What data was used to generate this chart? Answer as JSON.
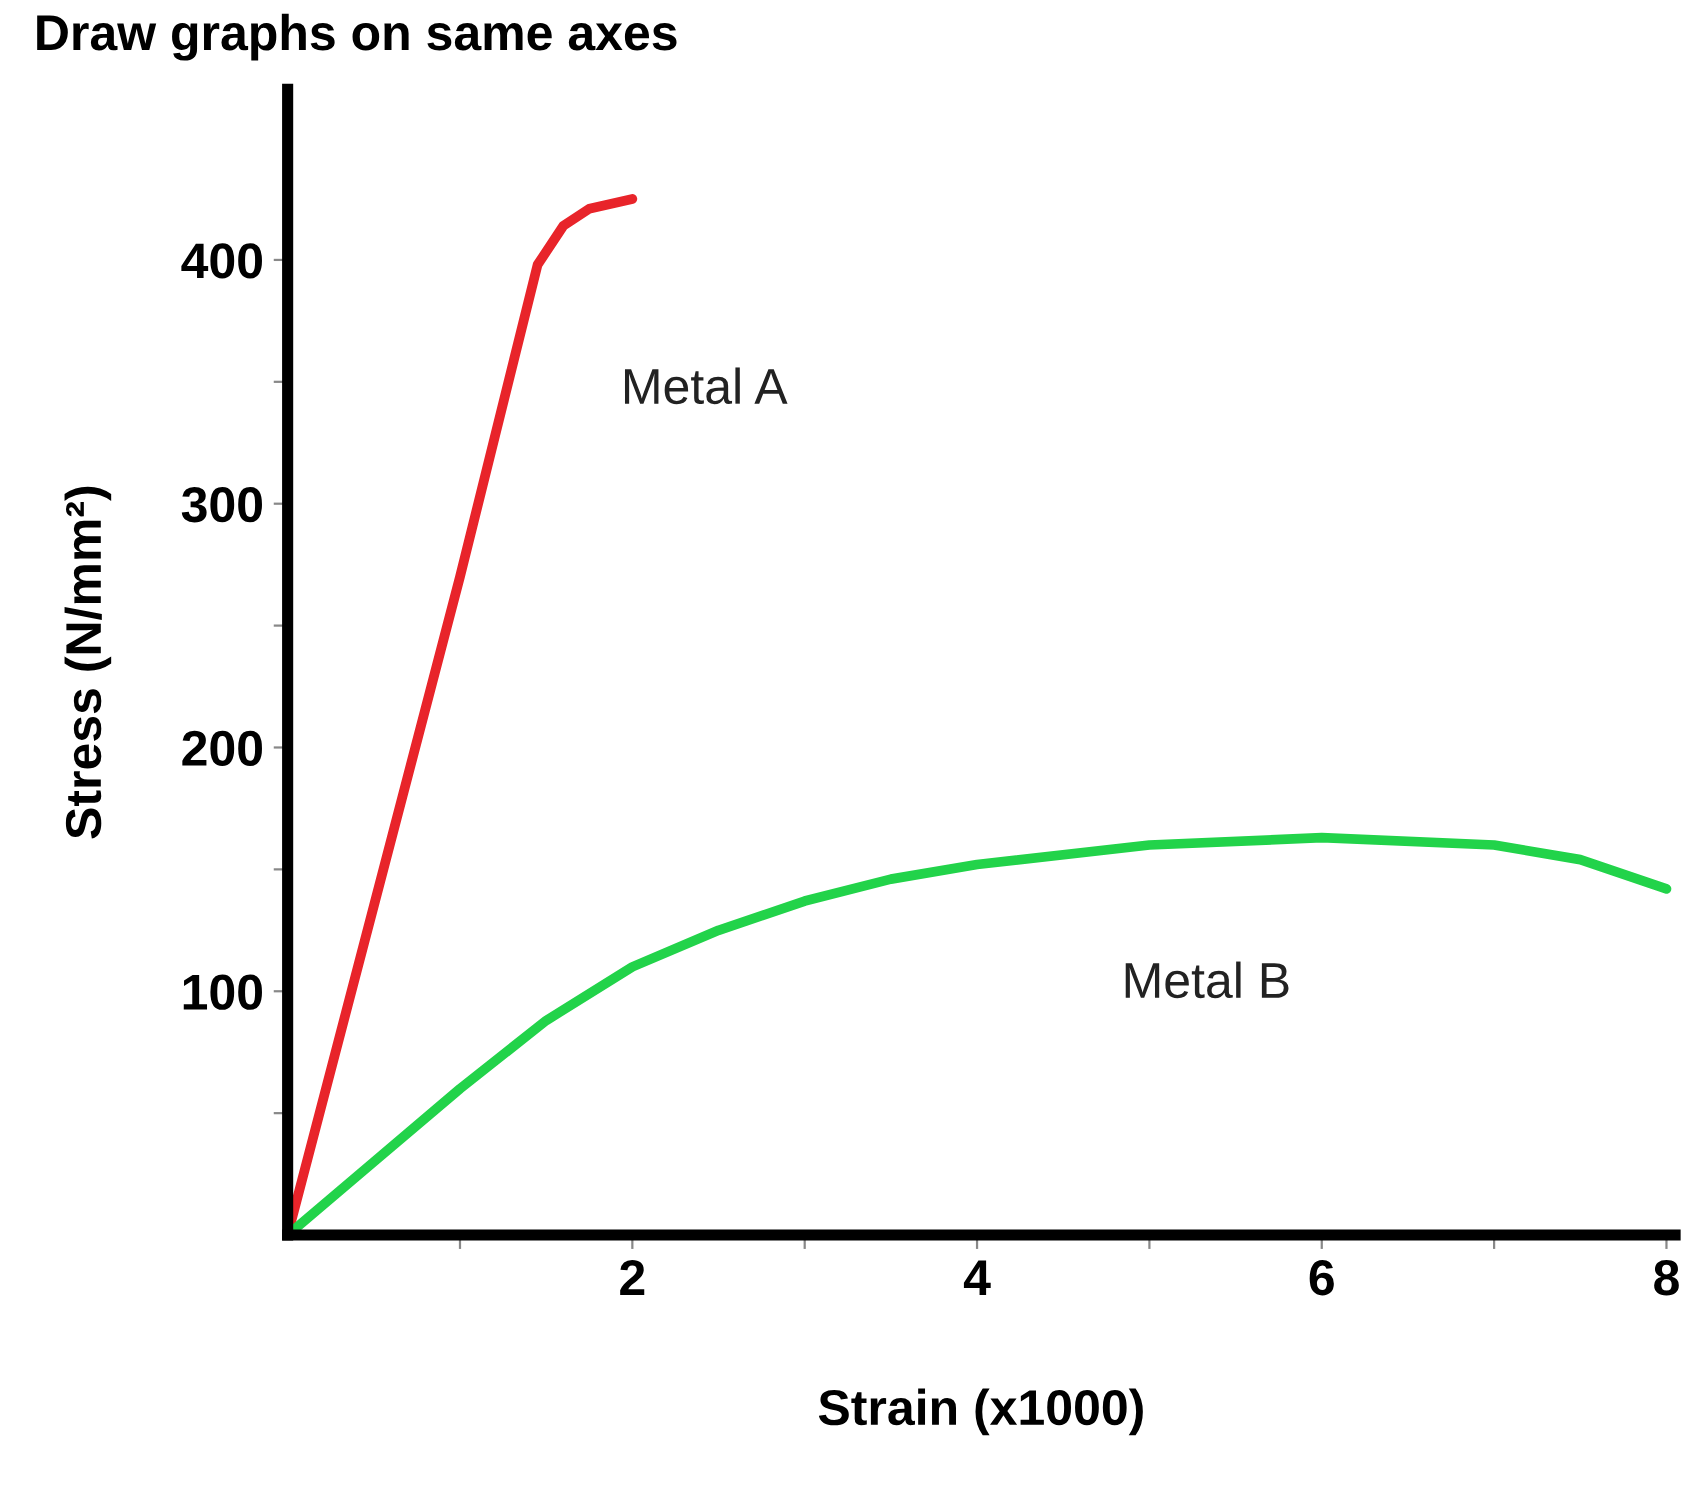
{
  "chart_data": {
    "type": "line",
    "title": "Draw graphs on same axes",
    "xlabel": "Strain (x1000)",
    "ylabel": "Stress (N/mm²)",
    "xlim": [
      0,
      8.05
    ],
    "ylim": [
      0,
      470
    ],
    "xticks": [
      {
        "value": 1,
        "label": null
      },
      2,
      {
        "value": 3,
        "label": null
      },
      4,
      {
        "value": 5,
        "label": null
      },
      6,
      {
        "value": 7,
        "label": null
      },
      8
    ],
    "yticks": [
      {
        "value": 50,
        "label": null
      },
      100,
      {
        "value": 150,
        "label": null
      },
      200,
      {
        "value": 250,
        "label": null
      },
      300,
      {
        "value": 350,
        "label": null
      },
      400
    ],
    "grid": false,
    "legend": false,
    "marker": "none",
    "line_style": "solid",
    "series": [
      {
        "name": "Metal A",
        "color": "#e8242a",
        "x": [
          0,
          0.5,
          1.0,
          1.45,
          1.6,
          1.75,
          2.0
        ],
        "values": [
          0,
          135,
          270,
          398,
          414,
          421,
          425
        ]
      },
      {
        "name": "Metal B",
        "color": "#22d34a",
        "x": [
          0,
          0.5,
          1.0,
          1.5,
          2.0,
          2.5,
          3.0,
          3.5,
          4.0,
          5.0,
          6.0,
          7.0,
          7.5,
          8.0
        ],
        "values": [
          0,
          30,
          60,
          88,
          110,
          125,
          137,
          146,
          152,
          160,
          163,
          160,
          154,
          142
        ]
      }
    ]
  }
}
